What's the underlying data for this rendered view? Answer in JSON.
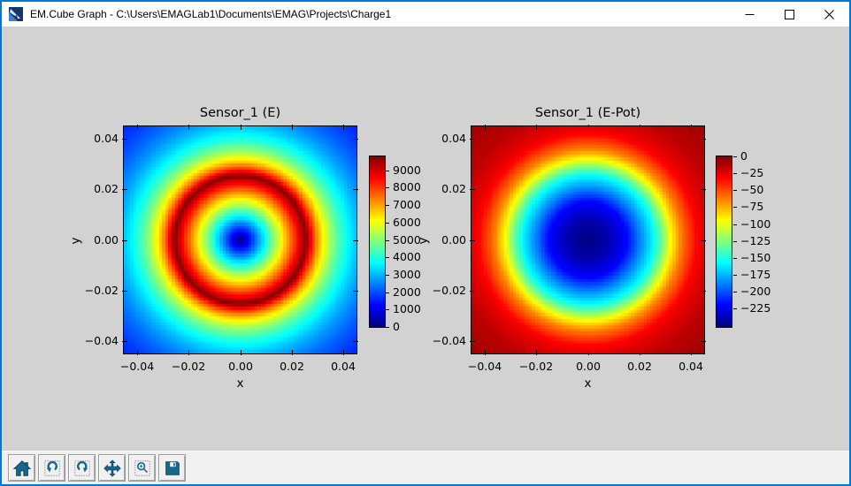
{
  "window": {
    "title": "EM.Cube Graph - C:\\Users\\EMAGLab1\\Documents\\EMAG\\Projects\\Charge1",
    "border_color": "#0078d7",
    "controls": [
      {
        "name": "minimize",
        "icon": "minimize-icon"
      },
      {
        "name": "maximize",
        "icon": "maximize-icon"
      },
      {
        "name": "close",
        "icon": "close-icon"
      }
    ]
  },
  "figure": {
    "facecolor": "#d2d2d2",
    "toolbar_color": "#f0f0f0",
    "icon_color": "#17678d"
  },
  "chart_data": [
    {
      "type": "heatmap",
      "title": "Sensor_1 (E)",
      "xlabel": "x",
      "ylabel": "y",
      "xlim": [
        -0.045,
        0.045
      ],
      "ylim": [
        -0.045,
        0.045
      ],
      "xticks": [
        -0.04,
        -0.02,
        0.0,
        0.02,
        0.04
      ],
      "yticks": [
        0.04,
        0.02,
        0.0,
        -0.02,
        -0.04
      ],
      "colormap": "jet",
      "vmin": 0,
      "vmax": 9800,
      "colorbar_ticks": [
        9000,
        8000,
        7000,
        6000,
        5000,
        4000,
        3000,
        2000,
        1000,
        0
      ],
      "grid_n": 73,
      "profile": {
        "model": "ring-field",
        "R": 0.0255,
        "peak": 9800,
        "inner_law": "linear",
        "outer_law": "inverse_square",
        "description": "E=0 at center, rises linearly to peak ~9800 on ring r=0.0255, decays as 1/r^2 outside; blue corners ~1600, cyan edge midpoints ~3100"
      }
    },
    {
      "type": "heatmap",
      "title": "Sensor_1 (E-Pot)",
      "xlabel": "x",
      "ylabel": "y",
      "xlim": [
        -0.045,
        0.045
      ],
      "ylim": [
        -0.045,
        0.045
      ],
      "xticks": [
        -0.04,
        -0.02,
        0.0,
        0.02,
        0.04
      ],
      "yticks": [
        0.04,
        0.02,
        0.0,
        -0.02,
        -0.04
      ],
      "colormap": "jet",
      "vmin": -252,
      "vmax": 0,
      "colorbar_ticks": [
        0,
        -25,
        -50,
        -75,
        -100,
        -125,
        -150,
        -175,
        -200,
        -225
      ],
      "grid_n": 73,
      "profile": {
        "model": "radial-anchors",
        "r": [
          0,
          0.008,
          0.015,
          0.02,
          0.0255,
          0.029,
          0.032,
          0.036,
          0.042,
          0.045,
          0.052,
          0.0636
        ],
        "v": [
          -252,
          -240,
          -220,
          -189,
          -157,
          -126,
          -95,
          -63,
          -32,
          -25,
          -15,
          -8
        ],
        "description": "Potential well: ~-252 at center (dark blue), rising toward 0 at far corners (dark red)"
      }
    }
  ],
  "toolbar": {
    "buttons": [
      {
        "name": "home",
        "icon": "home-icon"
      },
      {
        "name": "back",
        "icon": "back-arrow-icon"
      },
      {
        "name": "forward",
        "icon": "forward-arrow-icon"
      },
      {
        "name": "pan",
        "icon": "pan-arrows-icon"
      },
      {
        "name": "zoom-to-rect",
        "icon": "zoom-magnifier-icon"
      },
      {
        "name": "save",
        "icon": "save-floppy-icon"
      }
    ]
  }
}
